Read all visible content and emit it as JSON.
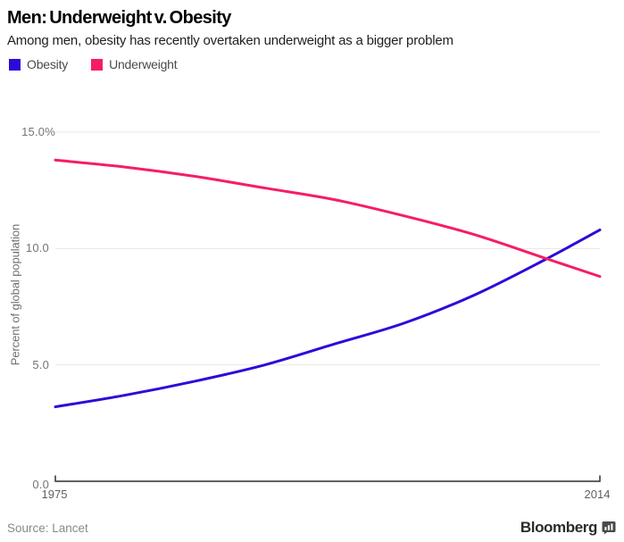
{
  "header": {
    "title": "Men: Underweight v. Obesity",
    "subtitle": "Among men, obesity has recently overtaken underweight as a bigger problem"
  },
  "legend": {
    "items": [
      {
        "label": "Obesity",
        "color": "#2c0bd8"
      },
      {
        "label": "Underweight",
        "color": "#f51d66"
      }
    ]
  },
  "chart_data": {
    "type": "line",
    "title": "Men: Underweight v. Obesity",
    "subtitle": "Among men, obesity has recently overtaken underweight as a bigger problem",
    "xlabel": "",
    "ylabel": "Percent of global population",
    "x": [
      1975,
      1980,
      1985,
      1990,
      1995,
      2000,
      2005,
      2010,
      2014
    ],
    "series": [
      {
        "name": "Obesity",
        "color": "#2c0bd8",
        "values": [
          3.2,
          3.7,
          4.3,
          5.0,
          5.9,
          6.8,
          8.0,
          9.5,
          10.8
        ]
      },
      {
        "name": "Underweight",
        "color": "#f51d66",
        "values": [
          13.8,
          13.5,
          13.1,
          12.6,
          12.1,
          11.4,
          10.6,
          9.6,
          8.8
        ]
      }
    ],
    "xlim": [
      1975,
      2014
    ],
    "ylim": [
      0,
      15
    ],
    "yticks": [
      0,
      5,
      10,
      15
    ],
    "ytick_labels": [
      "0.0",
      "5.0",
      "10.0",
      "15.0%"
    ],
    "xtick_labels": [
      "1975",
      "2014"
    ],
    "grid": true,
    "gridline_color": "#e7e7e7",
    "axis_color": "#2e2e2e",
    "legend_position": "top-left",
    "crossover_note": "Obesity line crosses above Underweight near 2011 at about 9.5%"
  },
  "footer": {
    "source": "Source: Lancet",
    "brand": "Bloomberg"
  }
}
